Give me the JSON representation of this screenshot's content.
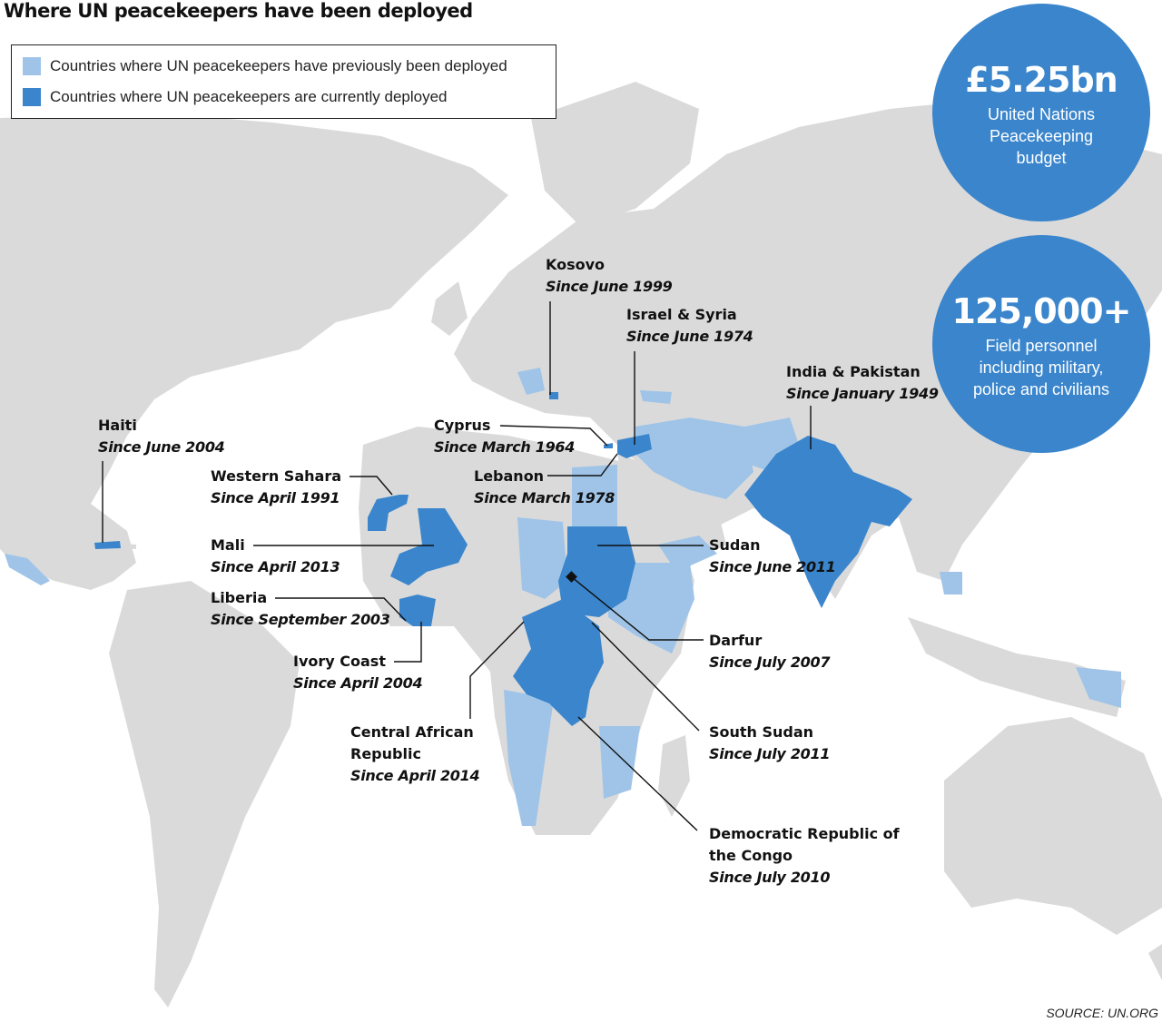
{
  "title": "Where UN peacekeepers have been deployed",
  "colors": {
    "land": "#dadada",
    "previous": "#9fc4e8",
    "current": "#3a85cc",
    "circle": "#3a85cc",
    "leader": "#111111"
  },
  "legend": {
    "previous_label": "Countries where UN peacekeepers have previously been deployed",
    "current_label": "Countries where UN peacekeepers are currently deployed"
  },
  "stats": {
    "budget": {
      "value": "£5.25bn",
      "label": "United Nations Peacekeeping budget"
    },
    "personnel": {
      "value": "125,000+",
      "label": "Field personnel including military, police and civilians"
    }
  },
  "missions": [
    {
      "id": "haiti",
      "name": "Haiti",
      "since": "Since June 2004"
    },
    {
      "id": "western-sahara",
      "name": "Western Sahara",
      "since": "Since April 1991"
    },
    {
      "id": "mali",
      "name": "Mali",
      "since": "Since April 2013"
    },
    {
      "id": "liberia",
      "name": "Liberia",
      "since": "Since September 2003"
    },
    {
      "id": "ivory-coast",
      "name": "Ivory Coast",
      "since": "Since April 2004"
    },
    {
      "id": "car",
      "name": "Central African Republic",
      "since": "Since April 2014"
    },
    {
      "id": "kosovo",
      "name": "Kosovo",
      "since": "Since June 1999"
    },
    {
      "id": "israel-syria",
      "name": "Israel & Syria",
      "since": "Since June 1974"
    },
    {
      "id": "cyprus",
      "name": "Cyprus",
      "since": "Since March 1964"
    },
    {
      "id": "lebanon",
      "name": "Lebanon",
      "since": "Since March 1978"
    },
    {
      "id": "india-pakistan",
      "name": "India & Pakistan",
      "since": "Since January 1949"
    },
    {
      "id": "sudan",
      "name": "Sudan",
      "since": "Since June 2011"
    },
    {
      "id": "darfur",
      "name": "Darfur",
      "since": "Since July 2007"
    },
    {
      "id": "south-sudan",
      "name": "South Sudan",
      "since": "Since July 2011"
    },
    {
      "id": "drc",
      "name": "Democratic Republic of the Congo",
      "since": "Since July 2010"
    }
  ],
  "source": "SOURCE: UN.ORG"
}
